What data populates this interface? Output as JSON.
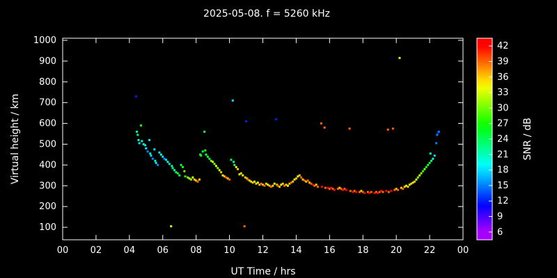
{
  "title": "2025-05-08. f = 5260 kHz",
  "chart_data": {
    "type": "scatter",
    "title": "2025-05-08. f = 5260 kHz",
    "xlabel": "UT Time / hrs",
    "ylabel": "Virtual height / km",
    "colorbar_label": "SNR / dB",
    "xlim": [
      0,
      24
    ],
    "ylim": [
      40,
      1010
    ],
    "x_tick_values": [
      0,
      2,
      4,
      6,
      8,
      10,
      12,
      14,
      16,
      18,
      20,
      22,
      24
    ],
    "x_tick_labels": [
      "00",
      "02",
      "04",
      "06",
      "08",
      "10",
      "12",
      "14",
      "16",
      "18",
      "20",
      "22",
      "00"
    ],
    "y_ticks": [
      100,
      200,
      300,
      400,
      500,
      600,
      700,
      800,
      900,
      1000
    ],
    "colorbar_ticks": [
      6,
      9,
      12,
      15,
      18,
      21,
      24,
      27,
      30,
      33,
      36,
      39,
      42
    ],
    "colorbar_range": [
      4.5,
      43.5
    ],
    "background": "#000000",
    "grid": false,
    "legend": "colorbar-right",
    "points": [
      [
        4.4,
        730,
        12
      ],
      [
        4.45,
        560,
        21
      ],
      [
        4.5,
        545,
        24
      ],
      [
        4.55,
        520,
        21
      ],
      [
        4.6,
        505,
        18
      ],
      [
        4.7,
        590,
        27
      ],
      [
        4.75,
        515,
        21
      ],
      [
        4.85,
        500,
        18
      ],
      [
        4.95,
        495,
        21
      ],
      [
        5.0,
        480,
        18
      ],
      [
        5.1,
        465,
        15
      ],
      [
        5.2,
        520,
        18
      ],
      [
        5.25,
        455,
        21
      ],
      [
        5.3,
        445,
        18
      ],
      [
        5.4,
        430,
        15
      ],
      [
        5.5,
        475,
        18
      ],
      [
        5.55,
        420,
        21
      ],
      [
        5.6,
        410,
        18
      ],
      [
        5.7,
        400,
        15
      ],
      [
        5.8,
        460,
        18
      ],
      [
        5.9,
        450,
        21
      ],
      [
        6.0,
        440,
        18
      ],
      [
        6.1,
        430,
        15
      ],
      [
        6.2,
        425,
        18
      ],
      [
        6.3,
        415,
        21
      ],
      [
        6.4,
        405,
        18
      ],
      [
        6.5,
        105,
        33
      ],
      [
        6.55,
        395,
        21
      ],
      [
        6.6,
        385,
        24
      ],
      [
        6.7,
        375,
        21
      ],
      [
        6.8,
        365,
        24
      ],
      [
        6.9,
        360,
        27
      ],
      [
        7.0,
        350,
        24
      ],
      [
        7.1,
        400,
        24
      ],
      [
        7.2,
        390,
        27
      ],
      [
        7.3,
        370,
        30
      ],
      [
        7.35,
        345,
        27
      ],
      [
        7.5,
        340,
        30
      ],
      [
        7.6,
        335,
        33
      ],
      [
        7.7,
        330,
        30
      ],
      [
        7.8,
        340,
        33
      ],
      [
        7.9,
        330,
        36
      ],
      [
        8.0,
        325,
        36
      ],
      [
        8.1,
        320,
        39
      ],
      [
        8.2,
        330,
        36
      ],
      [
        8.25,
        450,
        24
      ],
      [
        8.3,
        445,
        27
      ],
      [
        8.4,
        465,
        24
      ],
      [
        8.5,
        560,
        24
      ],
      [
        8.55,
        470,
        27
      ],
      [
        8.6,
        450,
        24
      ],
      [
        8.7,
        440,
        27
      ],
      [
        8.8,
        430,
        24
      ],
      [
        8.9,
        420,
        30
      ],
      [
        9.0,
        415,
        33
      ],
      [
        9.1,
        405,
        30
      ],
      [
        9.2,
        395,
        33
      ],
      [
        9.3,
        385,
        30
      ],
      [
        9.4,
        375,
        33
      ],
      [
        9.5,
        365,
        36
      ],
      [
        9.6,
        350,
        33
      ],
      [
        9.7,
        345,
        36
      ],
      [
        9.8,
        340,
        39
      ],
      [
        9.9,
        335,
        36
      ],
      [
        10.0,
        330,
        39
      ],
      [
        10.1,
        425,
        24
      ],
      [
        10.2,
        710,
        18
      ],
      [
        10.25,
        415,
        21
      ],
      [
        10.3,
        400,
        24
      ],
      [
        10.4,
        390,
        33
      ],
      [
        10.5,
        380,
        36
      ],
      [
        10.6,
        355,
        33
      ],
      [
        10.7,
        360,
        36
      ],
      [
        10.8,
        350,
        33
      ],
      [
        10.9,
        105,
        39
      ],
      [
        10.95,
        340,
        36
      ],
      [
        11.0,
        610,
        12
      ],
      [
        11.05,
        335,
        36
      ],
      [
        11.1,
        330,
        39
      ],
      [
        11.2,
        325,
        36
      ],
      [
        11.3,
        320,
        33
      ],
      [
        11.4,
        315,
        36
      ],
      [
        11.5,
        320,
        33
      ],
      [
        11.6,
        310,
        36
      ],
      [
        11.7,
        315,
        33
      ],
      [
        11.8,
        305,
        36
      ],
      [
        11.9,
        310,
        39
      ],
      [
        12.0,
        305,
        36
      ],
      [
        12.1,
        300,
        39
      ],
      [
        12.2,
        310,
        36
      ],
      [
        12.3,
        305,
        33
      ],
      [
        12.4,
        300,
        36
      ],
      [
        12.5,
        295,
        39
      ],
      [
        12.6,
        300,
        36
      ],
      [
        12.7,
        310,
        33
      ],
      [
        12.8,
        620,
        12
      ],
      [
        12.85,
        305,
        36
      ],
      [
        12.9,
        300,
        39
      ],
      [
        13.0,
        295,
        36
      ],
      [
        13.1,
        305,
        33
      ],
      [
        13.2,
        310,
        36
      ],
      [
        13.3,
        300,
        39
      ],
      [
        13.4,
        305,
        36
      ],
      [
        13.5,
        300,
        33
      ],
      [
        13.6,
        310,
        36
      ],
      [
        13.7,
        315,
        39
      ],
      [
        13.8,
        320,
        36
      ],
      [
        13.9,
        330,
        33
      ],
      [
        14.0,
        335,
        36
      ],
      [
        14.1,
        345,
        33
      ],
      [
        14.2,
        350,
        36
      ],
      [
        14.3,
        340,
        39
      ],
      [
        14.4,
        330,
        36
      ],
      [
        14.5,
        325,
        39
      ],
      [
        14.6,
        320,
        36
      ],
      [
        14.7,
        325,
        39
      ],
      [
        14.8,
        315,
        36
      ],
      [
        14.9,
        310,
        39
      ],
      [
        15.0,
        305,
        42
      ],
      [
        15.1,
        300,
        39
      ],
      [
        15.2,
        305,
        36
      ],
      [
        15.3,
        295,
        39
      ],
      [
        15.5,
        600,
        39
      ],
      [
        15.55,
        295,
        42
      ],
      [
        15.7,
        580,
        39
      ],
      [
        15.75,
        290,
        39
      ],
      [
        15.9,
        290,
        42
      ],
      [
        16.0,
        285,
        39
      ],
      [
        16.1,
        290,
        42
      ],
      [
        16.2,
        285,
        39
      ],
      [
        16.3,
        280,
        42
      ],
      [
        16.5,
        285,
        39
      ],
      [
        16.6,
        290,
        36
      ],
      [
        16.7,
        285,
        39
      ],
      [
        16.8,
        280,
        42
      ],
      [
        16.9,
        285,
        39
      ],
      [
        17.0,
        280,
        42
      ],
      [
        17.2,
        575,
        39
      ],
      [
        17.25,
        275,
        39
      ],
      [
        17.4,
        270,
        42
      ],
      [
        17.5,
        275,
        39
      ],
      [
        17.6,
        270,
        42
      ],
      [
        17.8,
        270,
        39
      ],
      [
        17.9,
        275,
        36
      ],
      [
        18.0,
        270,
        39
      ],
      [
        18.1,
        265,
        42
      ],
      [
        18.3,
        270,
        39
      ],
      [
        18.4,
        265,
        42
      ],
      [
        18.5,
        270,
        39
      ],
      [
        18.7,
        265,
        42
      ],
      [
        18.8,
        270,
        39
      ],
      [
        18.9,
        265,
        42
      ],
      [
        19.0,
        270,
        39
      ],
      [
        19.1,
        275,
        42
      ],
      [
        19.2,
        270,
        39
      ],
      [
        19.4,
        275,
        42
      ],
      [
        19.5,
        570,
        39
      ],
      [
        19.55,
        270,
        39
      ],
      [
        19.7,
        275,
        42
      ],
      [
        19.8,
        575,
        39
      ],
      [
        19.9,
        280,
        39
      ],
      [
        20.0,
        285,
        36
      ],
      [
        20.1,
        280,
        39
      ],
      [
        20.2,
        915,
        33
      ],
      [
        20.3,
        290,
        36
      ],
      [
        20.4,
        285,
        39
      ],
      [
        20.5,
        295,
        36
      ],
      [
        20.6,
        300,
        33
      ],
      [
        20.7,
        295,
        36
      ],
      [
        20.8,
        305,
        33
      ],
      [
        20.9,
        310,
        36
      ],
      [
        21.0,
        315,
        33
      ],
      [
        21.1,
        320,
        36
      ],
      [
        21.2,
        330,
        33
      ],
      [
        21.3,
        340,
        30
      ],
      [
        21.4,
        350,
        33
      ],
      [
        21.5,
        360,
        30
      ],
      [
        21.6,
        370,
        27
      ],
      [
        21.7,
        380,
        30
      ],
      [
        21.8,
        390,
        27
      ],
      [
        21.9,
        400,
        24
      ],
      [
        22.0,
        410,
        27
      ],
      [
        22.05,
        455,
        21
      ],
      [
        22.1,
        420,
        24
      ],
      [
        22.2,
        430,
        21
      ],
      [
        22.3,
        445,
        18
      ],
      [
        22.4,
        505,
        15
      ],
      [
        22.45,
        545,
        15
      ],
      [
        22.5,
        555,
        12
      ],
      [
        22.55,
        560,
        15
      ]
    ]
  }
}
